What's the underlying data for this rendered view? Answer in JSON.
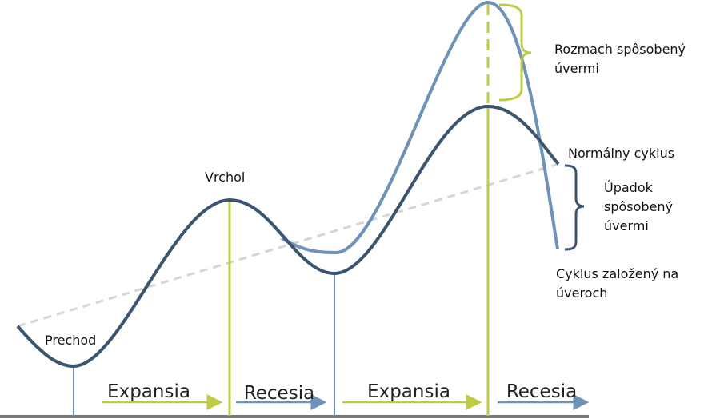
{
  "labels": {
    "credit_boom": [
      "Rozmach spôsobený",
      "úvermi"
    ],
    "normal_cycle": "Normálny cyklus",
    "credit_bust": [
      "Úpadok",
      "spôsobený",
      "úvermi"
    ],
    "credit_cycle": [
      "Cyklus založený na",
      "úveroch"
    ],
    "peak": "Vrchol",
    "trough": "Prechod"
  },
  "phases": [
    "Expansia",
    "Recesia",
    "Expansia",
    "Recesia"
  ]
}
